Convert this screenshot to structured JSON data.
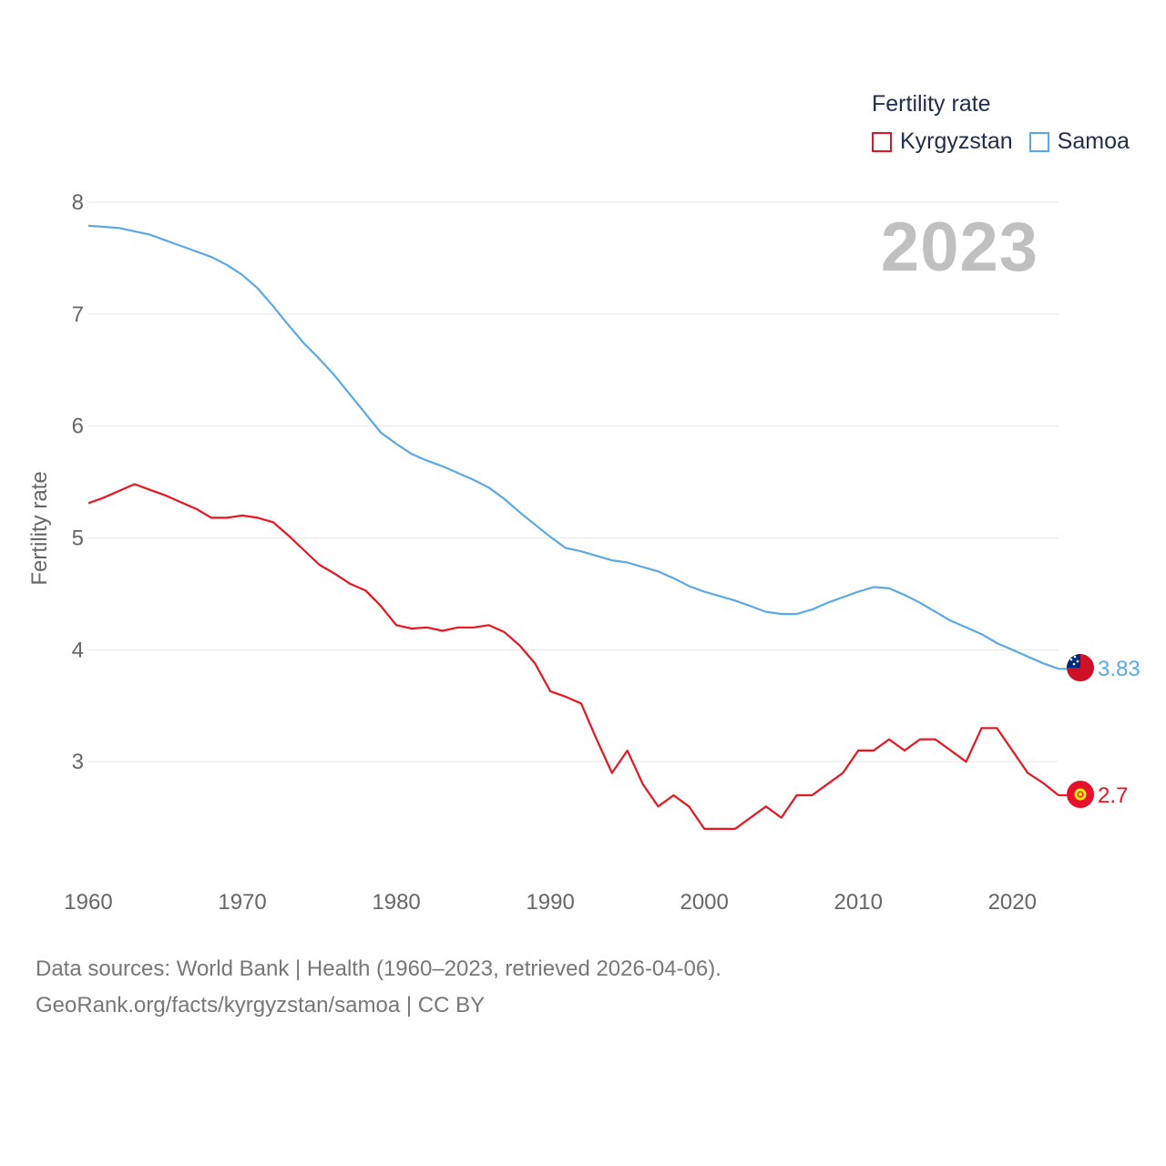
{
  "legend": {
    "title": "Fertility rate",
    "items": [
      {
        "label": "Kyrgyzstan",
        "color": "#e8141e"
      },
      {
        "label": "Samoa",
        "color": "#5ba8e6"
      }
    ]
  },
  "year_display": "2023",
  "source": {
    "line1": "Data sources: World Bank | Health (1960–2023, retrieved 2026-04-06).",
    "line2": "GeoRank.org/facts/kyrgyzstan/samoa | CC BY"
  },
  "chart_data": {
    "type": "line",
    "title": "Fertility rate",
    "xlabel": "",
    "ylabel": "Fertility rate",
    "xlim": [
      1960,
      2023
    ],
    "ylim": [
      2,
      8
    ],
    "xticks": [
      1960,
      1970,
      1980,
      1990,
      2000,
      2010,
      2020
    ],
    "yticks": [
      3,
      4,
      5,
      6,
      7,
      8
    ],
    "grid": true,
    "legend_position": "top-right",
    "x": [
      1960,
      1961,
      1962,
      1963,
      1964,
      1965,
      1966,
      1967,
      1968,
      1969,
      1970,
      1971,
      1972,
      1973,
      1974,
      1975,
      1976,
      1977,
      1978,
      1979,
      1980,
      1981,
      1982,
      1983,
      1984,
      1985,
      1986,
      1987,
      1988,
      1989,
      1990,
      1991,
      1992,
      1993,
      1994,
      1995,
      1996,
      1997,
      1998,
      1999,
      2000,
      2001,
      2002,
      2003,
      2004,
      2005,
      2006,
      2007,
      2008,
      2009,
      2010,
      2011,
      2012,
      2013,
      2014,
      2015,
      2016,
      2017,
      2018,
      2019,
      2020,
      2021,
      2022,
      2023
    ],
    "series": [
      {
        "name": "Kyrgyzstan",
        "color": "#e8141e",
        "end_label": "2.7",
        "values": [
          5.31,
          5.36,
          5.42,
          5.48,
          5.43,
          5.38,
          5.32,
          5.26,
          5.18,
          5.18,
          5.2,
          5.18,
          5.14,
          5.02,
          4.89,
          4.76,
          4.68,
          4.59,
          4.53,
          4.39,
          4.22,
          4.19,
          4.2,
          4.17,
          4.2,
          4.2,
          4.22,
          4.16,
          4.04,
          3.88,
          3.63,
          3.58,
          3.52,
          3.2,
          2.9,
          3.1,
          2.8,
          2.6,
          2.7,
          2.6,
          2.4,
          2.4,
          2.4,
          2.5,
          2.6,
          2.5,
          2.7,
          2.7,
          2.8,
          2.9,
          3.1,
          3.1,
          3.2,
          3.1,
          3.2,
          3.2,
          3.1,
          3.0,
          3.3,
          3.3,
          3.1,
          2.9,
          2.81,
          2.7
        ]
      },
      {
        "name": "Samoa",
        "color": "#5ba8e6",
        "end_label": "3.83",
        "values": [
          7.79,
          7.78,
          7.77,
          7.74,
          7.71,
          7.66,
          7.61,
          7.56,
          7.51,
          7.44,
          7.35,
          7.23,
          7.07,
          6.9,
          6.74,
          6.6,
          6.45,
          6.28,
          6.11,
          5.94,
          5.84,
          5.75,
          5.69,
          5.64,
          5.58,
          5.52,
          5.45,
          5.35,
          5.23,
          5.12,
          5.01,
          4.91,
          4.88,
          4.84,
          4.8,
          4.78,
          4.74,
          4.7,
          4.64,
          4.57,
          4.52,
          4.48,
          4.44,
          4.39,
          4.34,
          4.32,
          4.32,
          4.36,
          4.42,
          4.47,
          4.52,
          4.56,
          4.55,
          4.49,
          4.42,
          4.34,
          4.26,
          4.2,
          4.14,
          4.06,
          4.0,
          3.94,
          3.88,
          3.83
        ]
      }
    ]
  }
}
